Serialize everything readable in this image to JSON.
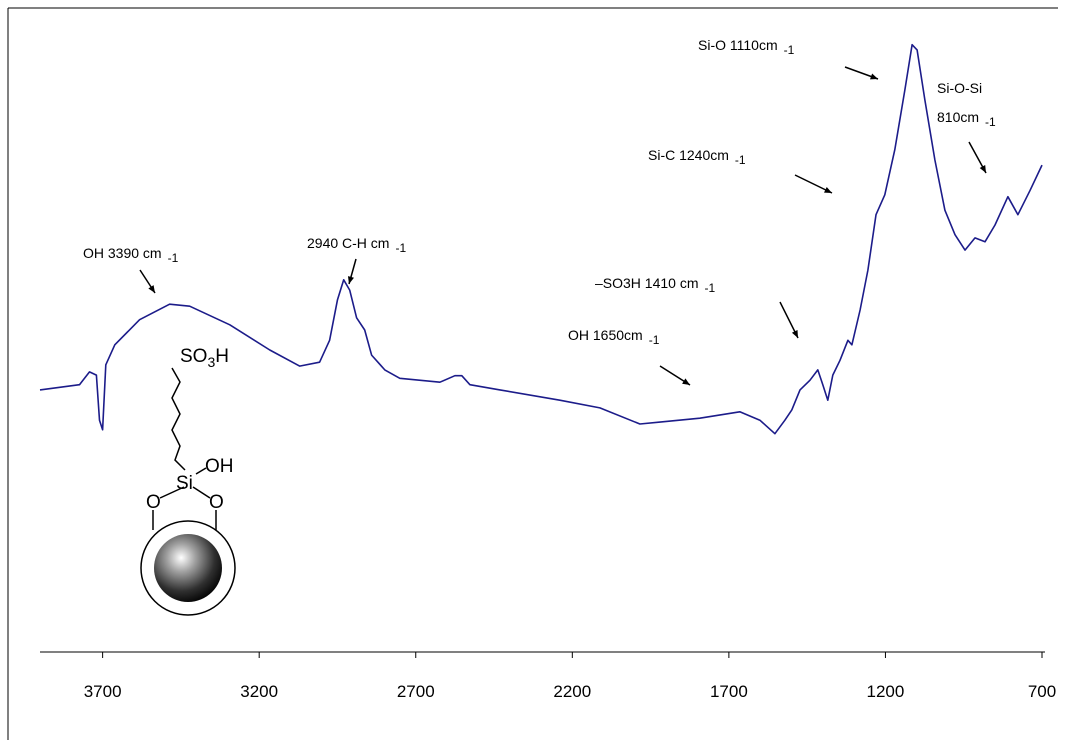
{
  "chart_data": {
    "type": "line",
    "color": "#1c1c8a",
    "x": [
      3900,
      3774,
      3742,
      3720,
      3710,
      3700,
      3690,
      3661,
      3582,
      3486,
      3422,
      3294,
      3166,
      3071,
      3007,
      2975,
      2950,
      2930,
      2911,
      2889,
      2863,
      2841,
      2799,
      2751,
      2623,
      2575,
      2553,
      2527,
      2431,
      2240,
      2112,
      1984,
      1920,
      1793,
      1665,
      1601,
      1553,
      1521,
      1499,
      1473,
      1441,
      1416,
      1400,
      1384,
      1368,
      1345,
      1320,
      1307,
      1281,
      1256,
      1230,
      1202,
      1170,
      1138,
      1115,
      1099,
      1074,
      1042,
      1010,
      978,
      946,
      914,
      882,
      850,
      809,
      777,
      738,
      700
    ],
    "values": [
      40.7,
      41.5,
      43.5,
      43.0,
      36.0,
      34.5,
      44.6,
      47.7,
      51.6,
      54.0,
      53.7,
      50.8,
      46.9,
      44.4,
      45.0,
      48.4,
      54.7,
      57.8,
      56.2,
      51.9,
      50.0,
      46.1,
      43.8,
      42.5,
      41.9,
      42.9,
      42.9,
      41.5,
      40.7,
      39.1,
      37.9,
      35.4,
      35.7,
      36.3,
      37.3,
      36.0,
      33.9,
      36.0,
      37.6,
      40.7,
      42.2,
      43.8,
      41.5,
      39.1,
      43.0,
      45.3,
      48.4,
      47.7,
      53.1,
      59.3,
      67.9,
      71.0,
      78.0,
      87.3,
      94.3,
      93.5,
      85.7,
      76.4,
      68.6,
      64.8,
      62.4,
      64.3,
      63.7,
      66.3,
      70.7,
      67.9,
      71.7,
      75.6
    ],
    "xlim": [
      3900,
      700
    ],
    "ylim": [
      0,
      100
    ],
    "xticks": [
      3700,
      3200,
      2700,
      2200,
      1700,
      1200,
      700
    ],
    "annotations": [
      {
        "text": "OH 3390 cm",
        "suffix": "-1"
      },
      {
        "text": "2940 C-H cm",
        "suffix": "-1"
      },
      {
        "text": "OH 1650cm",
        "suffix": "-1"
      },
      {
        "text": "–SO3H 1410 cm",
        "suffix": "-1"
      },
      {
        "text": "Si-C 1240cm",
        "suffix": "-1"
      },
      {
        "text": "Si-O 1110cm",
        "suffix": "-1"
      },
      {
        "text": "Si-O-Si"
      },
      {
        "text": "810cm",
        "suffix": "-1"
      }
    ],
    "structure": {
      "group": "SO",
      "subscript": "3",
      "group_end": "H",
      "silicon": "Si",
      "hydroxyl": "OH",
      "oxygen_left": "O",
      "oxygen_right": "O"
    }
  }
}
